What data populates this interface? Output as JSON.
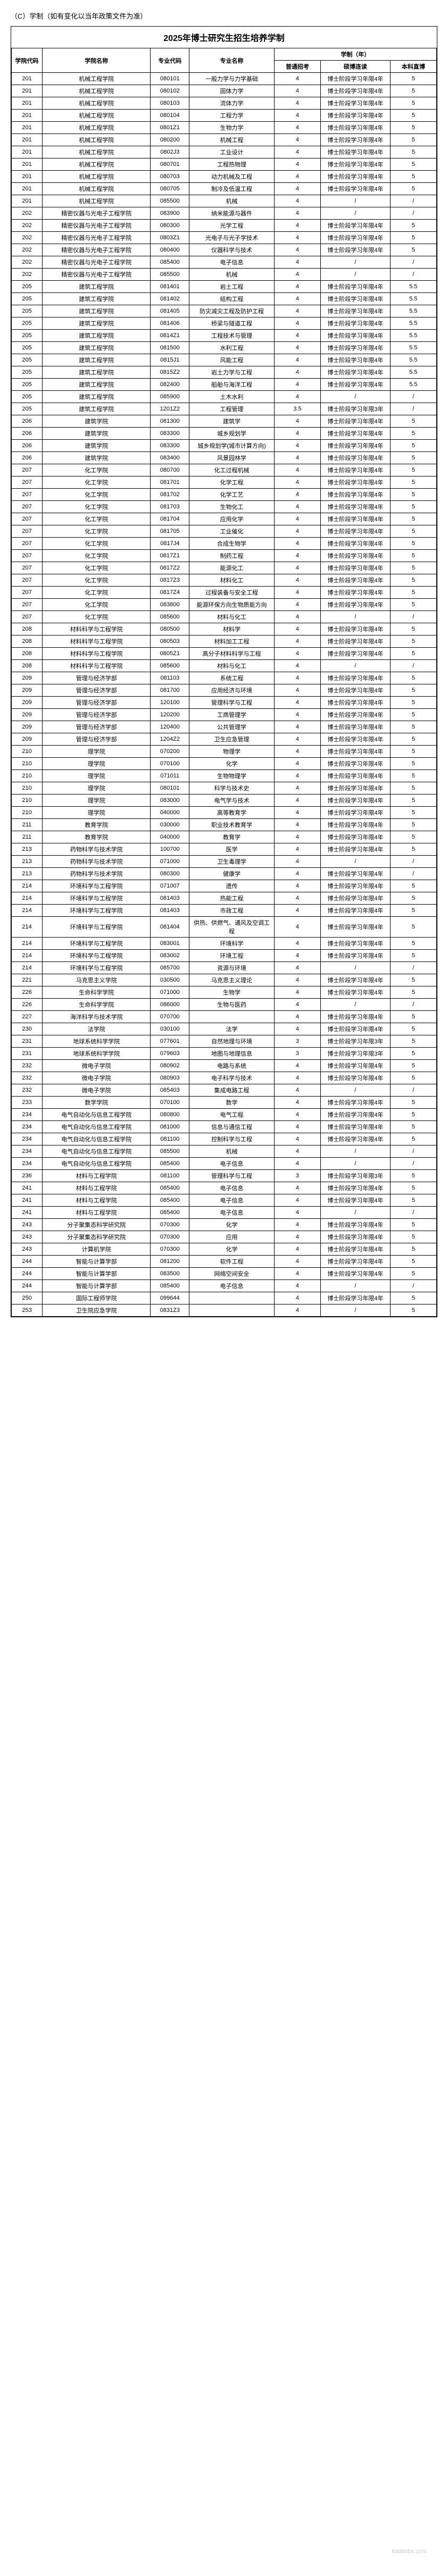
{
  "headerNote": "（C）学制（如有变化以当年政策文件为准）",
  "title": "2025年博士研究生招生培养学制",
  "columns": {
    "deptCode": "学院代码",
    "deptName": "学院名称",
    "majorCode": "专业代码",
    "majorName": "专业名称",
    "duration": "学制（年）",
    "durSub1": "普通招考",
    "durSub2": "硕博连读",
    "durSub3": "本科直博"
  },
  "durText": {
    "std": "博士阶段学习年限4年",
    "std3": "博士阶段学习年限3年"
  },
  "rows": [
    {
      "dc": "201",
      "dn": "机械工程学院",
      "mc": "080101",
      "mn": "一般力学与力学基础",
      "d1": "4",
      "d2": "std",
      "d3": "5"
    },
    {
      "dc": "201",
      "dn": "机械工程学院",
      "mc": "080102",
      "mn": "固体力学",
      "d1": "4",
      "d2": "std",
      "d3": "5"
    },
    {
      "dc": "201",
      "dn": "机械工程学院",
      "mc": "080103",
      "mn": "流体力学",
      "d1": "4",
      "d2": "std",
      "d3": "5"
    },
    {
      "dc": "201",
      "dn": "机械工程学院",
      "mc": "080104",
      "mn": "工程力学",
      "d1": "4",
      "d2": "std",
      "d3": "5"
    },
    {
      "dc": "201",
      "dn": "机械工程学院",
      "mc": "0801Z1",
      "mn": "生物力学",
      "d1": "4",
      "d2": "std",
      "d3": "5"
    },
    {
      "dc": "201",
      "dn": "机械工程学院",
      "mc": "080200",
      "mn": "机械工程",
      "d1": "4",
      "d2": "std",
      "d3": "5"
    },
    {
      "dc": "201",
      "dn": "机械工程学院",
      "mc": "0802J3",
      "mn": "工业设计",
      "d1": "4",
      "d2": "std",
      "d3": "5"
    },
    {
      "dc": "201",
      "dn": "机械工程学院",
      "mc": "080701",
      "mn": "工程热物理",
      "d1": "4",
      "d2": "std",
      "d3": "5"
    },
    {
      "dc": "201",
      "dn": "机械工程学院",
      "mc": "080703",
      "mn": "动力机械及工程",
      "d1": "4",
      "d2": "std",
      "d3": "5"
    },
    {
      "dc": "201",
      "dn": "机械工程学院",
      "mc": "080705",
      "mn": "制冷及低温工程",
      "d1": "4",
      "d2": "std",
      "d3": "5"
    },
    {
      "dc": "201",
      "dn": "机械工程学院",
      "mc": "085500",
      "mn": "机械",
      "d1": "4",
      "d2": "/",
      "d3": "/"
    },
    {
      "dc": "202",
      "dn": "精密仪器与光电子工程学院",
      "mc": "083900",
      "mn": "纳米能源与器件",
      "d1": "4",
      "d2": "/",
      "d3": "/"
    },
    {
      "dc": "202",
      "dn": "精密仪器与光电子工程学院",
      "mc": "080300",
      "mn": "光学工程",
      "d1": "4",
      "d2": "std",
      "d3": "5"
    },
    {
      "dc": "202",
      "dn": "精密仪器与光电子工程学院",
      "mc": "0803Z1",
      "mn": "光电子与光子学技术",
      "d1": "4",
      "d2": "std",
      "d3": "5"
    },
    {
      "dc": "202",
      "dn": "精密仪器与光电子工程学院",
      "mc": "080400",
      "mn": "仪器科学与技术",
      "d1": "4",
      "d2": "std",
      "d3": "5"
    },
    {
      "dc": "202",
      "dn": "精密仪器与光电子工程学院",
      "mc": "085400",
      "mn": "电子信息",
      "d1": "4",
      "d2": "/",
      "d3": "/"
    },
    {
      "dc": "202",
      "dn": "精密仪器与光电子工程学院",
      "mc": "085500",
      "mn": "机械",
      "d1": "4",
      "d2": "/",
      "d3": "/"
    },
    {
      "dc": "205",
      "dn": "建筑工程学院",
      "mc": "081401",
      "mn": "岩土工程",
      "d1": "4",
      "d2": "std",
      "d3": "5.5"
    },
    {
      "dc": "205",
      "dn": "建筑工程学院",
      "mc": "081402",
      "mn": "结构工程",
      "d1": "4",
      "d2": "std",
      "d3": "5.5"
    },
    {
      "dc": "205",
      "dn": "建筑工程学院",
      "mc": "081405",
      "mn": "防灾减灾工程及防护工程",
      "d1": "4",
      "d2": "std",
      "d3": "5.5"
    },
    {
      "dc": "205",
      "dn": "建筑工程学院",
      "mc": "081406",
      "mn": "桥梁与隧道工程",
      "d1": "4",
      "d2": "std",
      "d3": "5.5"
    },
    {
      "dc": "205",
      "dn": "建筑工程学院",
      "mc": "0814Z1",
      "mn": "工程技术与管理",
      "d1": "4",
      "d2": "std",
      "d3": "5.5"
    },
    {
      "dc": "205",
      "dn": "建筑工程学院",
      "mc": "081500",
      "mn": "水利工程",
      "d1": "4",
      "d2": "std",
      "d3": "5.5"
    },
    {
      "dc": "205",
      "dn": "建筑工程学院",
      "mc": "0815J1",
      "mn": "风能工程",
      "d1": "4",
      "d2": "std",
      "d3": "5.5"
    },
    {
      "dc": "205",
      "dn": "建筑工程学院",
      "mc": "0815Z2",
      "mn": "岩土力学与工程",
      "d1": "4",
      "d2": "std",
      "d3": "5.5"
    },
    {
      "dc": "205",
      "dn": "建筑工程学院",
      "mc": "082400",
      "mn": "船舶与海洋工程",
      "d1": "4",
      "d2": "std",
      "d3": "5.5"
    },
    {
      "dc": "205",
      "dn": "建筑工程学院",
      "mc": "085900",
      "mn": "土木水利",
      "d1": "4",
      "d2": "/",
      "d3": "/"
    },
    {
      "dc": "205",
      "dn": "建筑工程学院",
      "mc": "1201Z2",
      "mn": "工程管理",
      "d1": "3.5",
      "d2": "std3",
      "d3": "/"
    },
    {
      "dc": "206",
      "dn": "建筑学院",
      "mc": "081300",
      "mn": "建筑学",
      "d1": "4",
      "d2": "std",
      "d3": "5"
    },
    {
      "dc": "206",
      "dn": "建筑学院",
      "mc": "083300",
      "mn": "城乡规划学",
      "d1": "4",
      "d2": "std",
      "d3": "5"
    },
    {
      "dc": "206",
      "dn": "建筑学院",
      "mc": "083300",
      "mn": "城乡规划学(城市计算方向)",
      "d1": "4",
      "d2": "std",
      "d3": "5"
    },
    {
      "dc": "206",
      "dn": "建筑学院",
      "mc": "083400",
      "mn": "风景园林学",
      "d1": "4",
      "d2": "std",
      "d3": "5"
    },
    {
      "dc": "207",
      "dn": "化工学院",
      "mc": "080700",
      "mn": "化工过程机械",
      "d1": "4",
      "d2": "std",
      "d3": "5"
    },
    {
      "dc": "207",
      "dn": "化工学院",
      "mc": "081701",
      "mn": "化学工程",
      "d1": "4",
      "d2": "std",
      "d3": "5"
    },
    {
      "dc": "207",
      "dn": "化工学院",
      "mc": "081702",
      "mn": "化学工艺",
      "d1": "4",
      "d2": "std",
      "d3": "5"
    },
    {
      "dc": "207",
      "dn": "化工学院",
      "mc": "081703",
      "mn": "生物化工",
      "d1": "4",
      "d2": "std",
      "d3": "5"
    },
    {
      "dc": "207",
      "dn": "化工学院",
      "mc": "081704",
      "mn": "应用化学",
      "d1": "4",
      "d2": "std",
      "d3": "5"
    },
    {
      "dc": "207",
      "dn": "化工学院",
      "mc": "081705",
      "mn": "工业催化",
      "d1": "4",
      "d2": "std",
      "d3": "5"
    },
    {
      "dc": "207",
      "dn": "化工学院",
      "mc": "0817J4",
      "mn": "合成生物学",
      "d1": "4",
      "d2": "std",
      "d3": "5"
    },
    {
      "dc": "207",
      "dn": "化工学院",
      "mc": "0817Z1",
      "mn": "制药工程",
      "d1": "4",
      "d2": "std",
      "d3": "5"
    },
    {
      "dc": "207",
      "dn": "化工学院",
      "mc": "0817Z2",
      "mn": "能源化工",
      "d1": "4",
      "d2": "std",
      "d3": "5"
    },
    {
      "dc": "207",
      "dn": "化工学院",
      "mc": "0817Z3",
      "mn": "材料化工",
      "d1": "4",
      "d2": "std",
      "d3": "5"
    },
    {
      "dc": "207",
      "dn": "化工学院",
      "mc": "0817Z4",
      "mn": "过程装备与安全工程",
      "d1": "4",
      "d2": "std",
      "d3": "5"
    },
    {
      "dc": "207",
      "dn": "化工学院",
      "mc": "083800",
      "mn": "能源环保方向生物质能方向",
      "d1": "4",
      "d2": "std",
      "d3": "5"
    },
    {
      "dc": "207",
      "dn": "化工学院",
      "mc": "085600",
      "mn": "材料与化工",
      "d1": "4",
      "d2": "/",
      "d3": "/"
    },
    {
      "dc": "208",
      "dn": "材料科学与工程学院",
      "mc": "080500",
      "mn": "材料学",
      "d1": "4",
      "d2": "std",
      "d3": "5"
    },
    {
      "dc": "208",
      "dn": "材料科学与工程学院",
      "mc": "080503",
      "mn": "材料加工工程",
      "d1": "4",
      "d2": "std",
      "d3": "5"
    },
    {
      "dc": "208",
      "dn": "材料科学与工程学院",
      "mc": "0805Z1",
      "mn": "高分子材料科学与工程",
      "d1": "4",
      "d2": "std",
      "d3": "5"
    },
    {
      "dc": "208",
      "dn": "材料科学与工程学院",
      "mc": "085600",
      "mn": "材料与化工",
      "d1": "4",
      "d2": "/",
      "d3": "/"
    },
    {
      "dc": "209",
      "dn": "管理与经济学部",
      "mc": "081103",
      "mn": "系统工程",
      "d1": "4",
      "d2": "std",
      "d3": "5"
    },
    {
      "dc": "209",
      "dn": "管理与经济学部",
      "mc": "081700",
      "mn": "应用经济与环境",
      "d1": "4",
      "d2": "std",
      "d3": "5"
    },
    {
      "dc": "209",
      "dn": "管理与经济学部",
      "mc": "120100",
      "mn": "管理科学与工程",
      "d1": "4",
      "d2": "std",
      "d3": "5"
    },
    {
      "dc": "209",
      "dn": "管理与经济学部",
      "mc": "120200",
      "mn": "工商管理学",
      "d1": "4",
      "d2": "std",
      "d3": "5"
    },
    {
      "dc": "209",
      "dn": "管理与经济学部",
      "mc": "120400",
      "mn": "公共管理学",
      "d1": "4",
      "d2": "std",
      "d3": "5"
    },
    {
      "dc": "209",
      "dn": "管理与经济学部",
      "mc": "1204Z2",
      "mn": "卫生应急管理",
      "d1": "4",
      "d2": "std",
      "d3": "5"
    },
    {
      "dc": "210",
      "dn": "理学院",
      "mc": "070200",
      "mn": "物理学",
      "d1": "4",
      "d2": "std",
      "d3": "5"
    },
    {
      "dc": "210",
      "dn": "理学院",
      "mc": "070100",
      "mn": "化学",
      "d1": "4",
      "d2": "std",
      "d3": "5"
    },
    {
      "dc": "210",
      "dn": "理学院",
      "mc": "071011",
      "mn": "生物物理学",
      "d1": "4",
      "d2": "std",
      "d3": "5"
    },
    {
      "dc": "210",
      "dn": "理学院",
      "mc": "080101",
      "mn": "科学与技术史",
      "d1": "4",
      "d2": "std",
      "d3": "5"
    },
    {
      "dc": "210",
      "dn": "理学院",
      "mc": "083000",
      "mn": "电气学与技术",
      "d1": "4",
      "d2": "std",
      "d3": "5"
    },
    {
      "dc": "210",
      "dn": "理学院",
      "mc": "040000",
      "mn": "高等教育学",
      "d1": "4",
      "d2": "std",
      "d3": "5"
    },
    {
      "dc": "211",
      "dn": "教育学院",
      "mc": "030000",
      "mn": "职业技术教育学",
      "d1": "4",
      "d2": "std",
      "d3": "5"
    },
    {
      "dc": "211",
      "dn": "教育学院",
      "mc": "040000",
      "mn": "教育学",
      "d1": "4",
      "d2": "std",
      "d3": "5"
    },
    {
      "dc": "213",
      "dn": "药物科学与技术学院",
      "mc": "100700",
      "mn": "医学",
      "d1": "4",
      "d2": "std",
      "d3": "5"
    },
    {
      "dc": "213",
      "dn": "药物科学与技术学院",
      "mc": "071000",
      "mn": "卫生毒理学",
      "d1": "4",
      "d2": "/",
      "d3": "/"
    },
    {
      "dc": "213",
      "dn": "药物科学与技术学院",
      "mc": "080300",
      "mn": "健康学",
      "d1": "4",
      "d2": "std",
      "d3": "/"
    },
    {
      "dc": "214",
      "dn": "环境科学与工程学院",
      "mc": "071007",
      "mn": "遗传",
      "d1": "4",
      "d2": "std",
      "d3": "5"
    },
    {
      "dc": "214",
      "dn": "环境科学与工程学院",
      "mc": "081403",
      "mn": "热能工程",
      "d1": "4",
      "d2": "std",
      "d3": "5"
    },
    {
      "dc": "214",
      "dn": "环境科学与工程学院",
      "mc": "081403",
      "mn": "市政工程",
      "d1": "4",
      "d2": "std",
      "d3": "5"
    },
    {
      "dc": "214",
      "dn": "环境科学与工程学院",
      "mc": "081404",
      "mn": "供热、供燃气、通风及空调工程",
      "d1": "4",
      "d2": "std",
      "d3": "5"
    },
    {
      "dc": "214",
      "dn": "环境科学与工程学院",
      "mc": "083001",
      "mn": "环境科学",
      "d1": "4",
      "d2": "std",
      "d3": "5"
    },
    {
      "dc": "214",
      "dn": "环境科学与工程学院",
      "mc": "083002",
      "mn": "环境工程",
      "d1": "4",
      "d2": "std",
      "d3": "5"
    },
    {
      "dc": "214",
      "dn": "环境科学与工程学院",
      "mc": "085700",
      "mn": "资源与环境",
      "d1": "4",
      "d2": "/",
      "d3": "/"
    },
    {
      "dc": "221",
      "dn": "马克思主义学院",
      "mc": "030500",
      "mn": "马克思主义理论",
      "d1": "4",
      "d2": "std",
      "d3": "5"
    },
    {
      "dc": "226",
      "dn": "生命科学学院",
      "mc": "071000",
      "mn": "生物学",
      "d1": "4",
      "d2": "std",
      "d3": "5"
    },
    {
      "dc": "226",
      "dn": "生命科学学院",
      "mc": "086000",
      "mn": "生物与医药",
      "d1": "4",
      "d2": "/",
      "d3": "/"
    },
    {
      "dc": "227",
      "dn": "海洋科学与技术学院",
      "mc": "070700",
      "mn": "",
      "d1": "4",
      "d2": "std",
      "d3": "5"
    },
    {
      "dc": "230",
      "dn": "法学院",
      "mc": "030100",
      "mn": "法学",
      "d1": "4",
      "d2": "std",
      "d3": "5"
    },
    {
      "dc": "231",
      "dn": "地球系统科学学院",
      "mc": "077601",
      "mn": "自然地理与环境",
      "d1": "3",
      "d2": "std3",
      "d3": "5"
    },
    {
      "dc": "231",
      "dn": "地球系统科学学院",
      "mc": "079603",
      "mn": "地图与地理信息",
      "d1": "3",
      "d2": "std3",
      "d3": "5"
    },
    {
      "dc": "232",
      "dn": "微电子学院",
      "mc": "080902",
      "mn": "电路与系统",
      "d1": "4",
      "d2": "std",
      "d3": "5"
    },
    {
      "dc": "232",
      "dn": "微电子学院",
      "mc": "080903",
      "mn": "电子科学与技术",
      "d1": "4",
      "d2": "std",
      "d3": "5"
    },
    {
      "dc": "232",
      "dn": "微电子学院",
      "mc": "085403",
      "mn": "集成电路工程",
      "d1": "4",
      "d2": "/",
      "d3": "/"
    },
    {
      "dc": "233",
      "dn": "数学学院",
      "mc": "070100",
      "mn": "数学",
      "d1": "4",
      "d2": "std",
      "d3": "5"
    },
    {
      "dc": "234",
      "dn": "电气自动化与信息工程学院",
      "mc": "080800",
      "mn": "电气工程",
      "d1": "4",
      "d2": "std",
      "d3": "5"
    },
    {
      "dc": "234",
      "dn": "电气自动化与信息工程学院",
      "mc": "081000",
      "mn": "信息与通信工程",
      "d1": "4",
      "d2": "std",
      "d3": "5"
    },
    {
      "dc": "234",
      "dn": "电气自动化与信息工程学院",
      "mc": "081100",
      "mn": "控制科学与工程",
      "d1": "4",
      "d2": "std",
      "d3": "5"
    },
    {
      "dc": "234",
      "dn": "电气自动化与信息工程学院",
      "mc": "085500",
      "mn": "机械",
      "d1": "4",
      "d2": "/",
      "d3": "/"
    },
    {
      "dc": "234",
      "dn": "电气自动化与信息工程学院",
      "mc": "085400",
      "mn": "电子信息",
      "d1": "4",
      "d2": "/",
      "d3": "/"
    },
    {
      "dc": "236",
      "dn": "材料与工程学院",
      "mc": "081100",
      "mn": "管理科学与工程",
      "d1": "3",
      "d2": "std3",
      "d3": "5"
    },
    {
      "dc": "241",
      "dn": "材料与工程学院",
      "mc": "085400",
      "mn": "电子信息",
      "d1": "4",
      "d2": "std",
      "d3": "5"
    },
    {
      "dc": "241",
      "dn": "材料与工程学院",
      "mc": "085400",
      "mn": "电子信息",
      "d1": "4",
      "d2": "std",
      "d3": "5"
    },
    {
      "dc": "241",
      "dn": "材料与工程学院",
      "mc": "085400",
      "mn": "电子信息",
      "d1": "4",
      "d2": "/",
      "d3": "/"
    },
    {
      "dc": "243",
      "dn": "分子聚集态科学研究院",
      "mc": "070300",
      "mn": "化学",
      "d1": "4",
      "d2": "std",
      "d3": "5"
    },
    {
      "dc": "243",
      "dn": "分子聚集态科学研究院",
      "mc": "070300",
      "mn": "应用",
      "d1": "4",
      "d2": "std",
      "d3": "5"
    },
    {
      "dc": "243",
      "dn": "计算机学院",
      "mc": "070300",
      "mn": "化学",
      "d1": "4",
      "d2": "std",
      "d3": "5"
    },
    {
      "dc": "244",
      "dn": "智能与计算学部",
      "mc": "081200",
      "mn": "软件工程",
      "d1": "4",
      "d2": "std",
      "d3": "5"
    },
    {
      "dc": "244",
      "dn": "智能与计算学部",
      "mc": "083500",
      "mn": "网络空间安全",
      "d1": "4",
      "d2": "std",
      "d3": "5"
    },
    {
      "dc": "244",
      "dn": "智能与计算学部",
      "mc": "085400",
      "mn": "电子信息",
      "d1": "4",
      "d2": "/",
      "d3": "/"
    },
    {
      "dc": "250",
      "dn": "国际工程师学院",
      "mc": "099644",
      "mn": "",
      "d1": "4",
      "d2": "std",
      "d3": "5"
    },
    {
      "dc": "253",
      "dn": "卫生院应急学院",
      "mc": "0831Z3",
      "mn": "",
      "d1": "4",
      "d2": "/",
      "d3": "5"
    }
  ],
  "watermark": "kaobobs.com"
}
